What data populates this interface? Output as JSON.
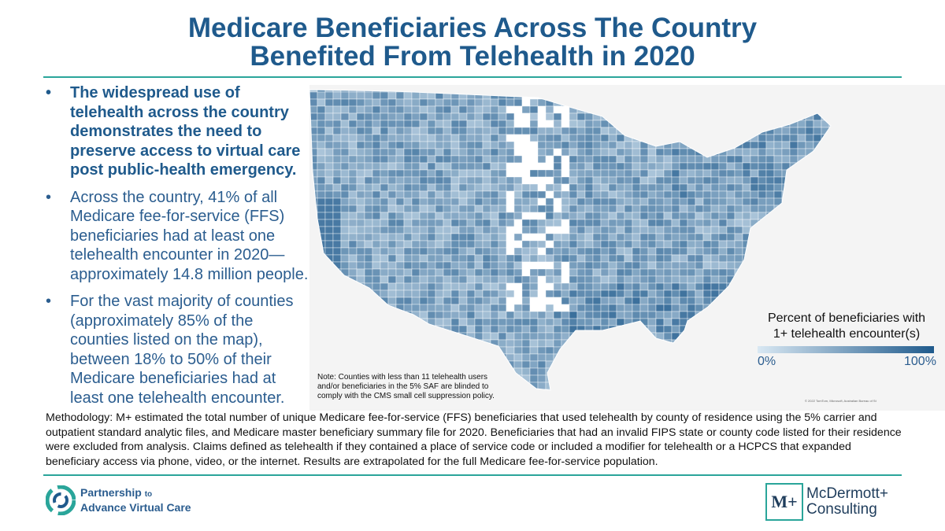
{
  "title": {
    "line1": "Medicare Beneficiaries Across The Country",
    "line2": "Benefited From Telehealth in 2020"
  },
  "bullets": [
    {
      "text": "The widespread use of telehealth across the country demonstrates the need to preserve access to virtual care post public-health emergency.",
      "bold": true
    },
    {
      "text": "Across the country, 41% of all Medicare fee-for-service (FFS) beneficiaries had at least one telehealth encounter in 2020—approximately 14.8 million people.",
      "bold": false
    },
    {
      "text": "For the vast majority of counties (approximately 85% of the counties listed on the map), between 18% to 50% of their Medicare beneficiaries had at least one telehealth encounter.",
      "bold": false
    }
  ],
  "bullet_marker": "•",
  "map": {
    "note": "Note: Counties with less than 11 telehealth users and/or beneficiaries in the 5% SAF are blinded to comply with the CMS small cell suppression policy.",
    "copyright": "© 2022 TomTom, Microsoft, Australian Bureau of St",
    "colors": {
      "low": "#d9e8f3",
      "high": "#1f5a8c",
      "land": "#e6e6e6",
      "water": "#f4f4f4"
    },
    "legend": {
      "title_line1": "Percent of beneficiaries with",
      "title_line2": "1+ telehealth encounter(s)",
      "min_label": "0%",
      "max_label": "100%"
    }
  },
  "methodology": "Methodology: M+ estimated the total number of unique Medicare fee-for-service (FFS) beneficiaries that used telehealth by county of residence using the 5% carrier and outpatient standard analytic files, and Medicare master beneficiary summary file for 2020. Beneficiaries that had an invalid FIPS state or county code listed for their residence were excluded from analysis. Claims defined as telehealth if they contained a place of service code or included a modifier for telehealth or a HCPCS that expanded beneficiary access via phone, video, or the internet. Results are extrapolated for the full Medicare fee-for-service population.",
  "logos": {
    "pavc_line1": "Partnership",
    "pavc_to": "to",
    "pavc_line2": "Advance Virtual Care",
    "mcd_line1": "McDermott+",
    "mcd_line2": "Consulting",
    "mcd_mark": "M+",
    "brand_teal": "#2aa59a",
    "brand_blue": "#1f5a8c"
  }
}
